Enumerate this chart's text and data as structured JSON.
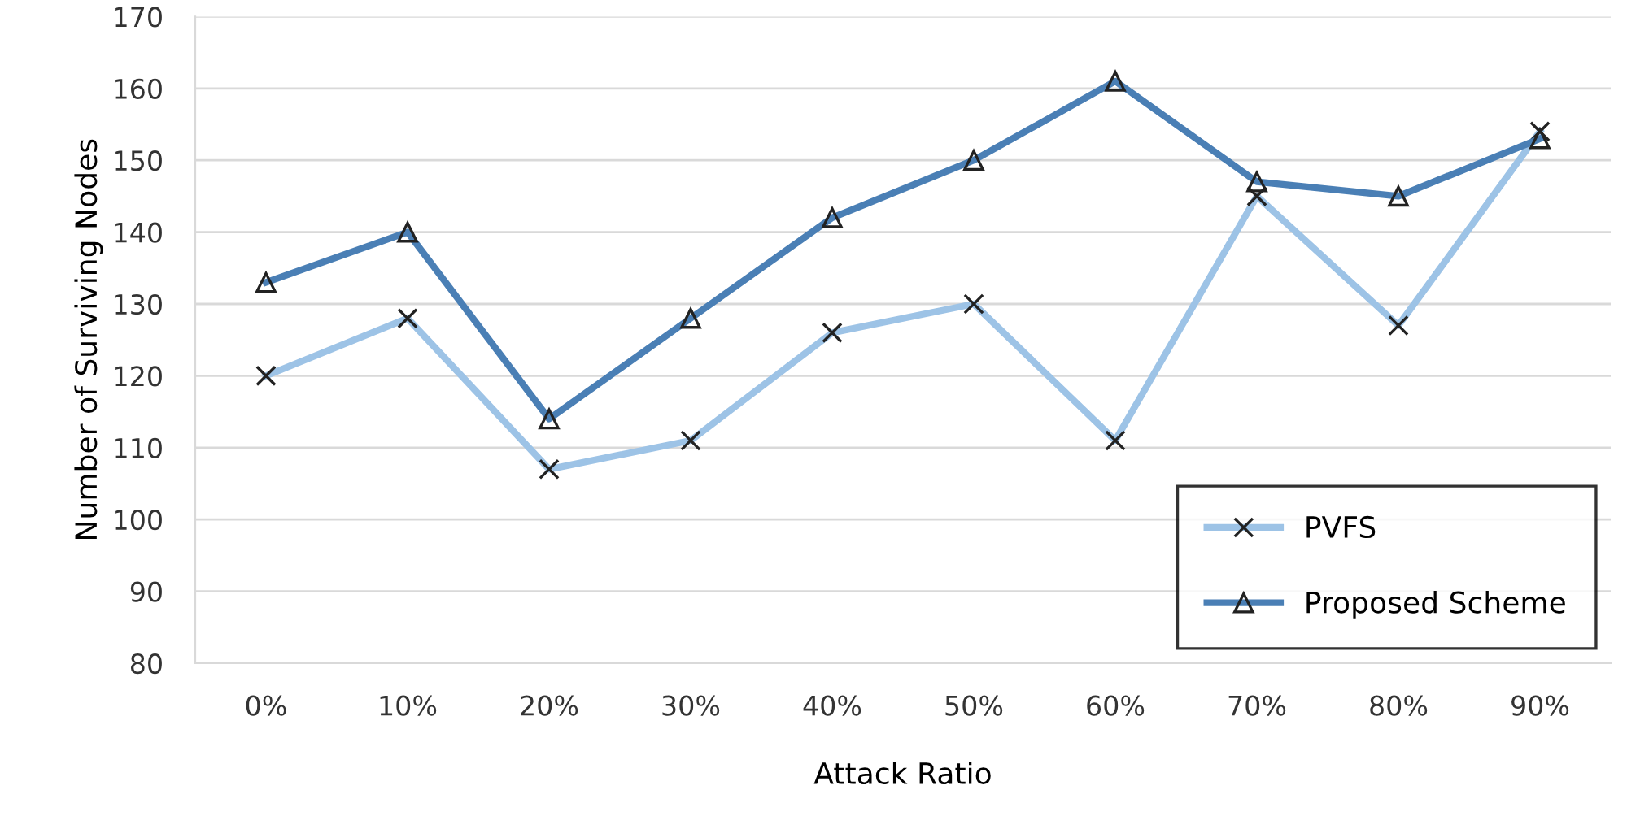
{
  "chart_data": {
    "type": "line",
    "xlabel": "Attack Ratio",
    "ylabel": "Number of Surviving Nodes",
    "categories": [
      "0%",
      "10%",
      "20%",
      "30%",
      "40%",
      "50%",
      "60%",
      "70%",
      "80%",
      "90%"
    ],
    "series": [
      {
        "name": "PVFS",
        "color": "#9dc3e6",
        "marker": "cross",
        "values": [
          120,
          128,
          107,
          111,
          126,
          130,
          111,
          145,
          127,
          154
        ]
      },
      {
        "name": "Proposed Scheme",
        "color": "#4a7fb5",
        "marker": "triangle",
        "values": [
          133,
          140,
          114,
          128,
          142,
          150,
          161,
          147,
          145,
          153
        ]
      }
    ],
    "ylim": [
      80,
      170
    ],
    "yticks": [
      80,
      90,
      100,
      110,
      120,
      130,
      140,
      150,
      160,
      170
    ],
    "grid": "y",
    "legend": "bottom right",
    "line_style": "solid"
  }
}
